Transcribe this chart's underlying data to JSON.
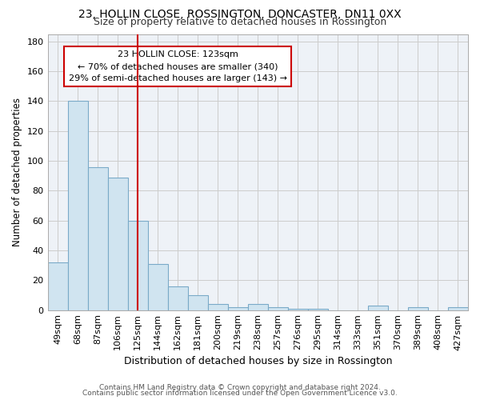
{
  "title1": "23, HOLLIN CLOSE, ROSSINGTON, DONCASTER, DN11 0XX",
  "title2": "Size of property relative to detached houses in Rossington",
  "xlabel": "Distribution of detached houses by size in Rossington",
  "ylabel": "Number of detached properties",
  "footer1": "Contains HM Land Registry data © Crown copyright and database right 2024.",
  "footer2": "Contains public sector information licensed under the Open Government Licence v3.0.",
  "bar_color": "#d0e4f0",
  "bar_edge_color": "#7aaac8",
  "categories": [
    "49sqm",
    "68sqm",
    "87sqm",
    "106sqm",
    "125sqm",
    "144sqm",
    "162sqm",
    "181sqm",
    "200sqm",
    "219sqm",
    "238sqm",
    "257sqm",
    "276sqm",
    "295sqm",
    "314sqm",
    "333sqm",
    "351sqm",
    "370sqm",
    "389sqm",
    "408sqm",
    "427sqm"
  ],
  "values": [
    32,
    140,
    96,
    89,
    60,
    31,
    16,
    10,
    4,
    2,
    4,
    2,
    1,
    1,
    0,
    0,
    3,
    0,
    2,
    0,
    2
  ],
  "vline_x_idx": 4,
  "vline_color": "#cc0000",
  "ann_line1": "23 HOLLIN CLOSE: 123sqm",
  "ann_line2": "← 70% of detached houses are smaller (340)",
  "ann_line3": "29% of semi-detached houses are larger (143) →",
  "annotation_box_color": "#cc0000",
  "ylim": [
    0,
    185
  ],
  "yticks": [
    0,
    20,
    40,
    60,
    80,
    100,
    120,
    140,
    160,
    180
  ],
  "grid_color": "#cccccc",
  "bg_color": "#eef2f7",
  "title1_fontsize": 10,
  "title2_fontsize": 9,
  "tick_fontsize": 8,
  "ylabel_fontsize": 8.5,
  "xlabel_fontsize": 9
}
